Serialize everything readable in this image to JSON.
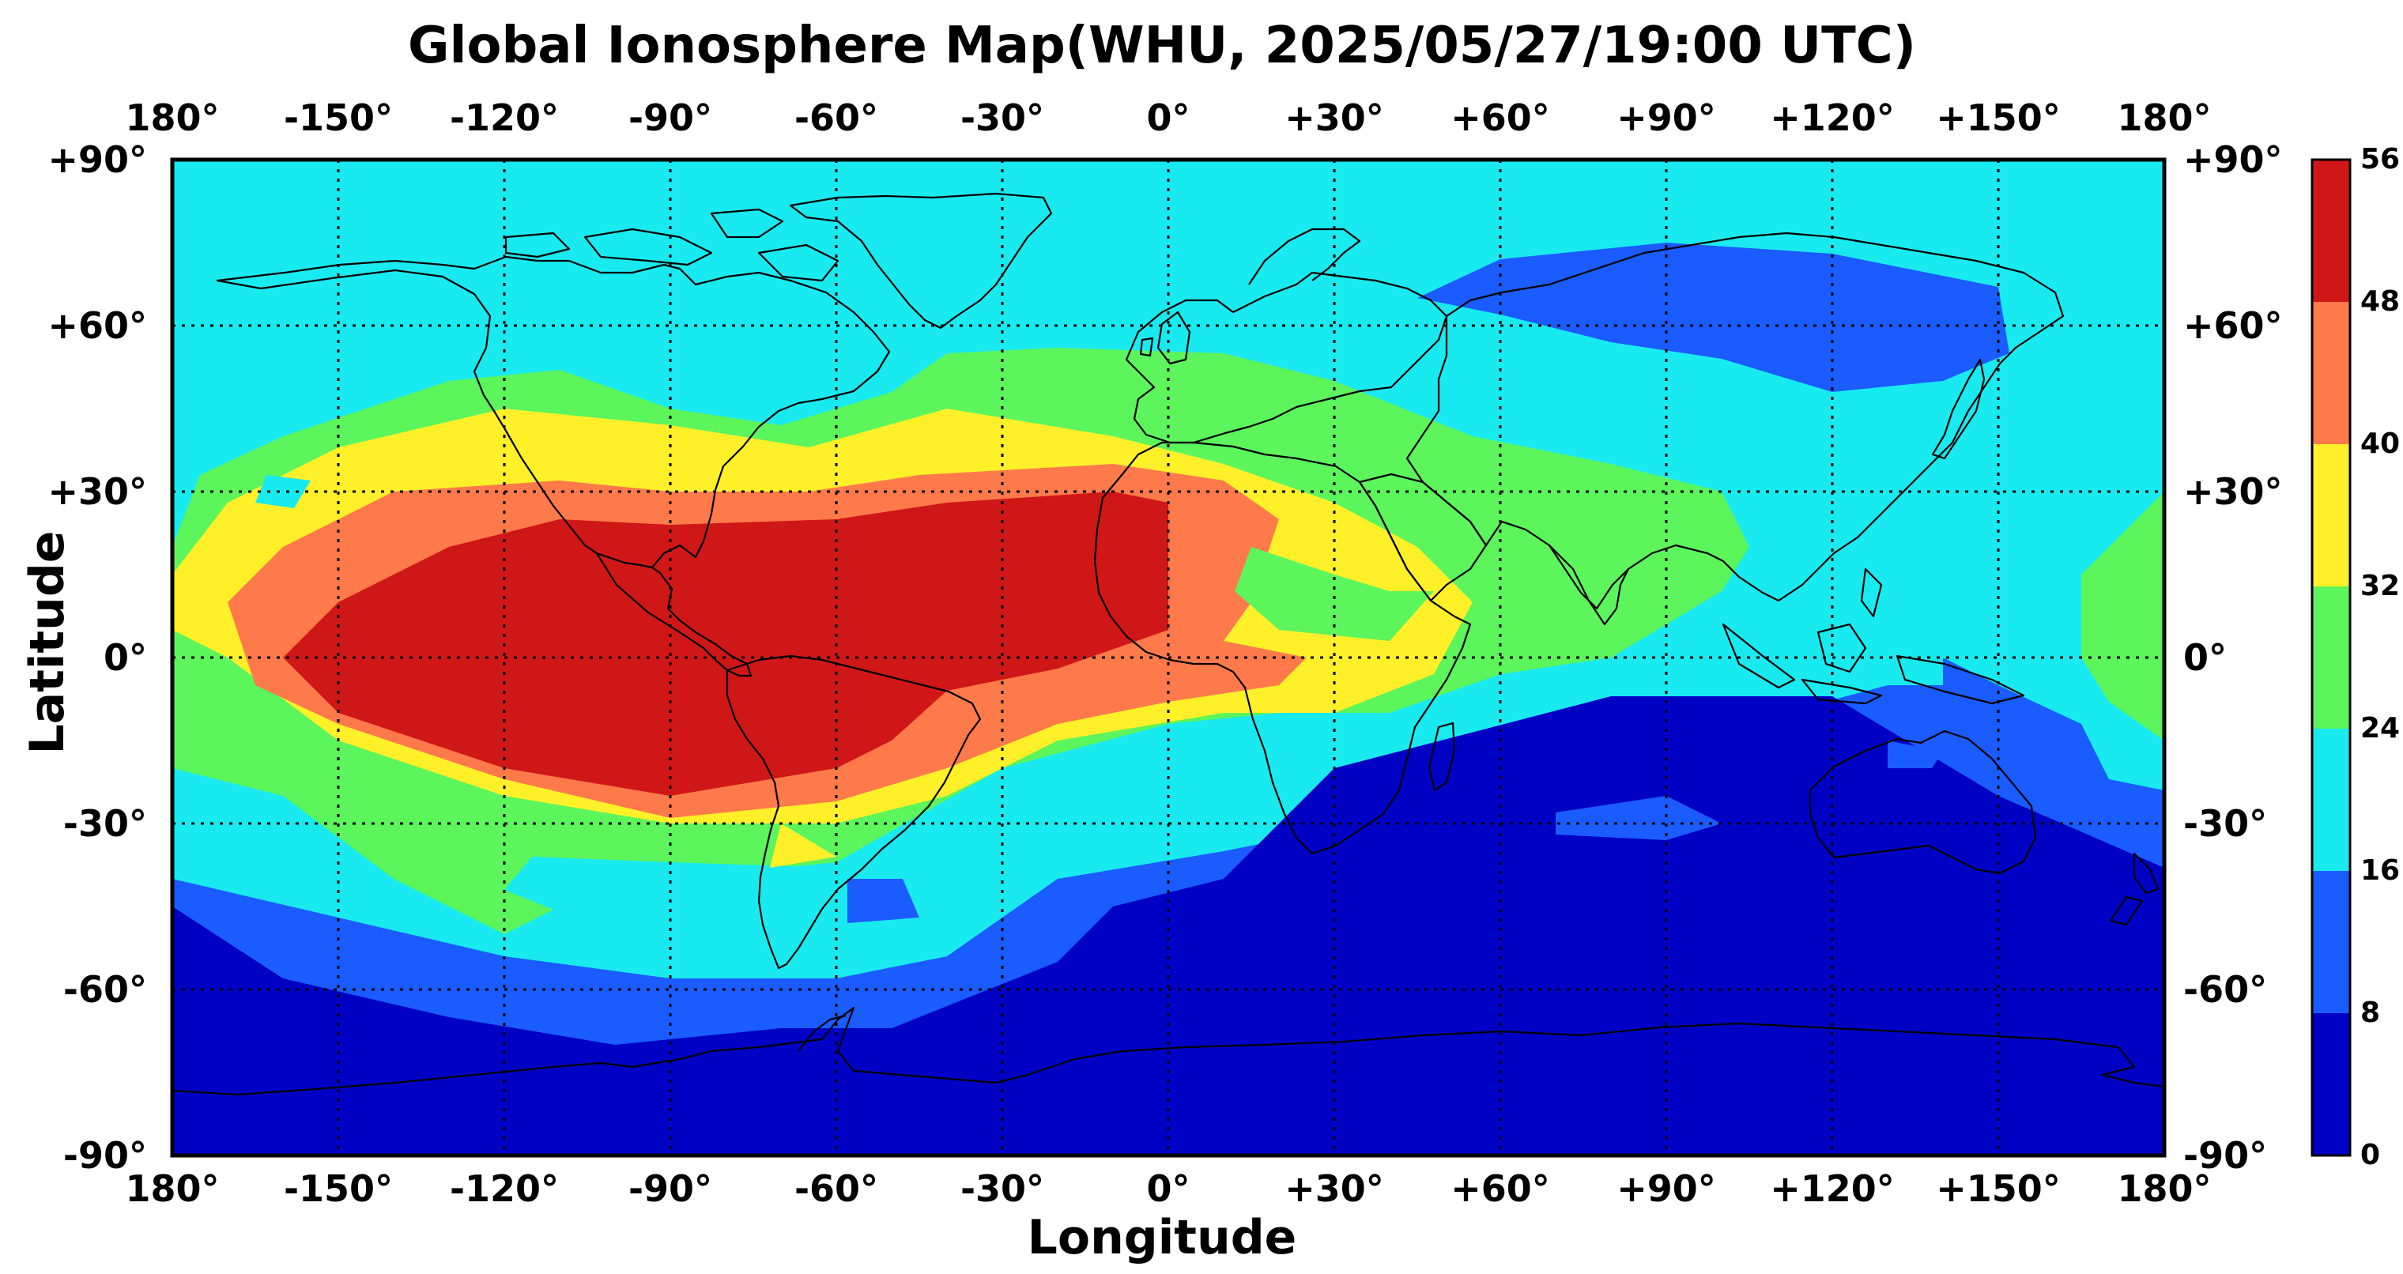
{
  "map": {
    "title": "Global Ionosphere Map(WHU, 2025/05/27/19:00 UTC)",
    "xlabel": "Longitude",
    "ylabel": "Latitude",
    "x_ticks": [
      "180°",
      "-150°",
      "-120°",
      "-90°",
      "-60°",
      "-30°",
      "0°",
      "+30°",
      "+60°",
      "+90°",
      "+120°",
      "+150°",
      "180°"
    ],
    "y_ticks": [
      "+90°",
      "+60°",
      "+30°",
      "0°",
      "-30°",
      "-60°",
      "-90°"
    ],
    "grid": true,
    "projection": "equirectangular",
    "lon_range": [
      -180,
      180
    ],
    "lat_range": [
      -90,
      90
    ]
  },
  "colorbar": {
    "ticks": [
      "0",
      "8",
      "16",
      "24",
      "32",
      "40",
      "48",
      "56"
    ],
    "levels": [
      0,
      8,
      16,
      24,
      32,
      40,
      48,
      56
    ],
    "colors": [
      "#0000c4",
      "#1a5cff",
      "#19eaf0",
      "#5cf55c",
      "#fff02a",
      "#ff7a4a",
      "#d01717"
    ]
  },
  "chart_data": {
    "type": "heatmap",
    "title": "Global Ionosphere Map(WHU, 2025/05/27/19:00 UTC)",
    "xlabel": "Longitude",
    "ylabel": "Latitude",
    "xlim": [
      -180,
      180
    ],
    "ylim": [
      -90,
      90
    ],
    "value_range": [
      0,
      56
    ],
    "contour_levels": [
      0,
      8,
      16,
      24,
      32,
      40,
      48,
      56
    ],
    "background_level": 16,
    "regions": [
      {
        "level": 8,
        "polygon": [
          [
            -180,
            -40
          ],
          [
            -150,
            -47
          ],
          [
            -120,
            -54
          ],
          [
            -90,
            -58
          ],
          [
            -60,
            -58
          ],
          [
            -40,
            -54
          ],
          [
            -20,
            -40
          ],
          [
            10,
            -35
          ],
          [
            60,
            -25
          ],
          [
            100,
            -13
          ],
          [
            130,
            -5
          ],
          [
            150,
            -5
          ],
          [
            165,
            -12
          ],
          [
            170,
            -22
          ],
          [
            180,
            -24
          ],
          [
            180,
            -90
          ],
          [
            -180,
            -90
          ]
        ]
      },
      {
        "level": 8,
        "polygon": [
          [
            -130,
            0
          ],
          [
            -125,
            -5
          ],
          [
            -133,
            -2
          ]
        ]
      },
      {
        "level": 8,
        "polygon": [
          [
            45,
            65
          ],
          [
            60,
            72
          ],
          [
            90,
            75
          ],
          [
            120,
            73
          ],
          [
            150,
            67
          ],
          [
            152,
            55
          ],
          [
            140,
            50
          ],
          [
            120,
            48
          ],
          [
            100,
            54
          ],
          [
            80,
            57
          ],
          [
            60,
            62
          ]
        ]
      },
      {
        "level": 0,
        "polygon": [
          [
            -180,
            -45
          ],
          [
            -160,
            -58
          ],
          [
            -130,
            -65
          ],
          [
            -100,
            -70
          ],
          [
            -70,
            -67
          ],
          [
            -50,
            -67
          ],
          [
            -20,
            -55
          ],
          [
            -10,
            -45
          ],
          [
            10,
            -40
          ],
          [
            30,
            -20
          ],
          [
            80,
            -7
          ],
          [
            120,
            -7
          ],
          [
            150,
            -25
          ],
          [
            180,
            -38
          ],
          [
            180,
            -90
          ],
          [
            -180,
            -90
          ]
        ]
      },
      {
        "level": 24,
        "polygon": [
          [
            -180,
            20
          ],
          [
            -175,
            33
          ],
          [
            -160,
            40
          ],
          [
            -130,
            50
          ],
          [
            -110,
            52
          ],
          [
            -90,
            45
          ],
          [
            -70,
            42
          ],
          [
            -50,
            48
          ],
          [
            -40,
            55
          ],
          [
            -20,
            56
          ],
          [
            10,
            55
          ],
          [
            30,
            50
          ],
          [
            55,
            40
          ],
          [
            80,
            35
          ],
          [
            100,
            30
          ],
          [
            105,
            20
          ],
          [
            100,
            12
          ],
          [
            80,
            0
          ],
          [
            60,
            -3
          ],
          [
            40,
            -10
          ],
          [
            20,
            -10
          ],
          [
            0,
            -12
          ],
          [
            -30,
            -20
          ],
          [
            -60,
            -37
          ],
          [
            -90,
            -40
          ],
          [
            -110,
            -45
          ],
          [
            -120,
            -50
          ],
          [
            -140,
            -40
          ],
          [
            -160,
            -25
          ],
          [
            -180,
            -20
          ]
        ]
      },
      {
        "level": 24,
        "polygon": [
          [
            165,
            15
          ],
          [
            175,
            25
          ],
          [
            180,
            30
          ],
          [
            180,
            -15
          ],
          [
            170,
            -8
          ],
          [
            165,
            0
          ]
        ]
      },
      {
        "level": 16,
        "polygon": [
          [
            -120,
            -42
          ],
          [
            -105,
            -48
          ],
          [
            -80,
            -50
          ],
          [
            -65,
            -45
          ],
          [
            -60,
            -38
          ],
          [
            -90,
            -37
          ],
          [
            -115,
            -36
          ]
        ]
      },
      {
        "level": 32,
        "polygon": [
          [
            -180,
            15
          ],
          [
            -170,
            28
          ],
          [
            -150,
            38
          ],
          [
            -120,
            45
          ],
          [
            -90,
            42
          ],
          [
            -65,
            38
          ],
          [
            -40,
            45
          ],
          [
            -10,
            40
          ],
          [
            10,
            35
          ],
          [
            30,
            28
          ],
          [
            45,
            20
          ],
          [
            55,
            10
          ],
          [
            48,
            -3
          ],
          [
            30,
            -10
          ],
          [
            10,
            -10
          ],
          [
            -20,
            -15
          ],
          [
            -40,
            -25
          ],
          [
            -60,
            -30
          ],
          [
            -90,
            -30
          ],
          [
            -120,
            -25
          ],
          [
            -150,
            -15
          ],
          [
            -170,
            0
          ],
          [
            -180,
            5
          ]
        ]
      },
      {
        "level": 32,
        "polygon": [
          [
            -70,
            -30
          ],
          [
            -60,
            -36
          ],
          [
            -72,
            -38
          ]
        ]
      },
      {
        "level": 40,
        "polygon": [
          [
            -170,
            10
          ],
          [
            -160,
            20
          ],
          [
            -140,
            30
          ],
          [
            -110,
            32
          ],
          [
            -90,
            30
          ],
          [
            -65,
            30
          ],
          [
            -45,
            33
          ],
          [
            -10,
            35
          ],
          [
            10,
            32
          ],
          [
            20,
            25
          ],
          [
            15,
            10
          ],
          [
            10,
            3
          ],
          [
            25,
            0
          ],
          [
            20,
            -5
          ],
          [
            0,
            -8
          ],
          [
            -20,
            -12
          ],
          [
            -40,
            -20
          ],
          [
            -60,
            -26
          ],
          [
            -90,
            -29
          ],
          [
            -120,
            -22
          ],
          [
            -150,
            -12
          ],
          [
            -165,
            -5
          ]
        ]
      },
      {
        "level": 48,
        "polygon": [
          [
            -160,
            0
          ],
          [
            -150,
            10
          ],
          [
            -130,
            20
          ],
          [
            -110,
            25
          ],
          [
            -90,
            24
          ],
          [
            -60,
            25
          ],
          [
            -40,
            28
          ],
          [
            -10,
            30
          ],
          [
            0,
            28
          ],
          [
            0,
            5
          ],
          [
            -20,
            -2
          ],
          [
            -40,
            -6
          ],
          [
            -50,
            -15
          ],
          [
            -60,
            -20
          ],
          [
            -90,
            -25
          ],
          [
            -120,
            -20
          ],
          [
            -150,
            -10
          ]
        ]
      },
      {
        "level": 16,
        "polygon": [
          [
            -165,
            28
          ],
          [
            -158,
            27
          ],
          [
            -155,
            32
          ],
          [
            -163,
            33
          ]
        ]
      },
      {
        "level": 24,
        "polygon": [
          [
            15,
            20
          ],
          [
            30,
            15
          ],
          [
            40,
            12
          ],
          [
            48,
            12
          ],
          [
            40,
            3
          ],
          [
            20,
            5
          ],
          [
            12,
            12
          ]
        ]
      },
      {
        "level": 8,
        "polygon": [
          [
            -58,
            -40
          ],
          [
            -48,
            -40
          ],
          [
            -45,
            -47
          ],
          [
            -58,
            -48
          ]
        ]
      },
      {
        "level": 8,
        "polygon": [
          [
            130,
            -15
          ],
          [
            140,
            -17
          ],
          [
            138,
            -20
          ],
          [
            130,
            -20
          ]
        ]
      },
      {
        "level": 8,
        "polygon": [
          [
            140,
            0
          ],
          [
            150,
            -5
          ],
          [
            150,
            -10
          ],
          [
            140,
            -12
          ]
        ]
      },
      {
        "level": 8,
        "polygon": [
          [
            70,
            -28
          ],
          [
            90,
            -25
          ],
          [
            100,
            -30
          ],
          [
            90,
            -33
          ],
          [
            70,
            -32
          ]
        ]
      }
    ]
  }
}
